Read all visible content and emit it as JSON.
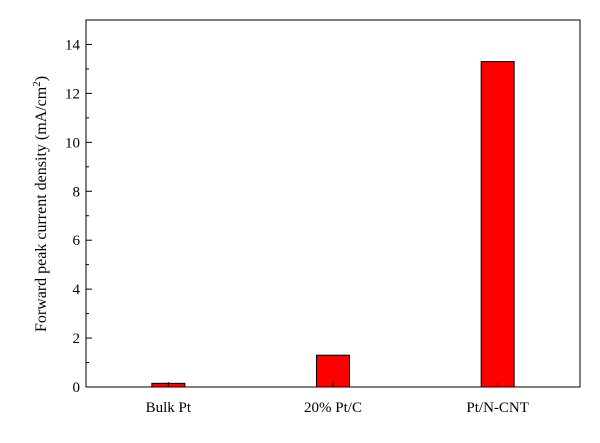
{
  "chart_data": {
    "type": "bar",
    "title": "",
    "xlabel": "",
    "ylabel": "Forward peak current density (mA/cm",
    "ylabel_sup": "2",
    "ylabel_end": ")",
    "categories": [
      "Bulk Pt",
      "20% Pt/C",
      "Pt/N-CNT"
    ],
    "values": [
      0.15,
      1.3,
      13.3
    ],
    "ylim": [
      0,
      15
    ],
    "yticks": [
      "0",
      "2",
      "4",
      "6",
      "8",
      "10",
      "12",
      "14"
    ],
    "grid": false,
    "legend": "none",
    "bar_color": "#ff0000",
    "bar_edge_color": "#000000"
  }
}
